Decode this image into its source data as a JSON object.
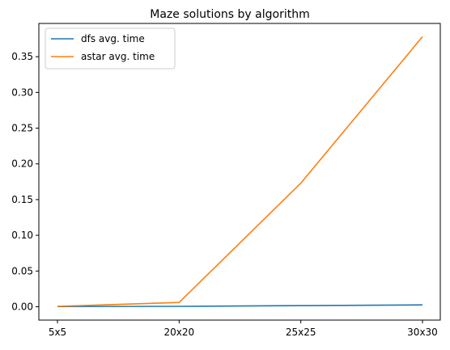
{
  "chart_data": {
    "type": "line",
    "title": "Maze solutions by algorithm",
    "xlabel": "",
    "ylabel": "",
    "categories": [
      "5x5",
      "20x20",
      "25x25",
      "30x30"
    ],
    "series": [
      {
        "name": "dfs avg. time",
        "color": "#1f77b4",
        "values": [
          0.0003,
          0.0005,
          0.0015,
          0.0026
        ]
      },
      {
        "name": "astar avg. time",
        "color": "#ff7f0e",
        "values": [
          0.0005,
          0.006,
          0.173,
          0.378
        ]
      }
    ],
    "yticks": [
      "0.00",
      "0.05",
      "0.10",
      "0.15",
      "0.20",
      "0.25",
      "0.30",
      "0.35"
    ],
    "ytick_values": [
      0,
      0.05,
      0.1,
      0.15,
      0.2,
      0.25,
      0.3,
      0.35
    ],
    "ylim": [
      -0.0187,
      0.3966
    ],
    "grid": false,
    "legend_position": "top-left"
  }
}
